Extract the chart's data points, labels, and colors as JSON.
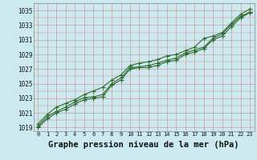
{
  "bg_color": "#cde9f0",
  "grid_color_major": "#b0c8d0",
  "grid_color_minor": "#c8dde5",
  "line_color": "#2d6a2d",
  "x_values": [
    0,
    1,
    2,
    3,
    4,
    5,
    6,
    7,
    8,
    9,
    10,
    11,
    12,
    13,
    14,
    15,
    16,
    17,
    18,
    19,
    20,
    21,
    22,
    23
  ],
  "y_values_main": [
    1019.2,
    1020.5,
    1021.2,
    1021.8,
    1022.5,
    1023.1,
    1023.2,
    1023.5,
    1025.0,
    1025.8,
    1027.2,
    1027.3,
    1027.5,
    1027.8,
    1028.2,
    1028.5,
    1029.2,
    1029.6,
    1030.0,
    1031.2,
    1031.8,
    1033.1,
    1034.2,
    1034.8
  ],
  "y_values_upper": [
    1019.5,
    1020.8,
    1021.8,
    1022.3,
    1022.8,
    1023.5,
    1024.0,
    1024.5,
    1025.5,
    1026.2,
    1027.5,
    1027.8,
    1028.0,
    1028.3,
    1028.8,
    1029.0,
    1029.5,
    1030.0,
    1031.2,
    1031.5,
    1032.0,
    1033.3,
    1034.5,
    1035.2
  ],
  "y_values_lower": [
    1019.0,
    1020.2,
    1021.0,
    1021.5,
    1022.2,
    1022.8,
    1023.0,
    1023.2,
    1024.8,
    1025.5,
    1027.0,
    1027.2,
    1027.2,
    1027.5,
    1028.0,
    1028.2,
    1029.0,
    1029.3,
    1029.8,
    1031.0,
    1031.5,
    1032.8,
    1034.0,
    1034.7
  ],
  "ylim": [
    1018.5,
    1036.0
  ],
  "yticks": [
    1019,
    1021,
    1023,
    1025,
    1027,
    1029,
    1031,
    1033,
    1035
  ],
  "xticks": [
    0,
    1,
    2,
    3,
    4,
    5,
    6,
    7,
    8,
    9,
    10,
    11,
    12,
    13,
    14,
    15,
    16,
    17,
    18,
    19,
    20,
    21,
    22,
    23
  ],
  "xlabel": "Graphe pression niveau de la mer (hPa)",
  "tick_fontsize": 5.5,
  "xlabel_fontsize": 7.5,
  "line_width": 0.8,
  "marker_size": 2.0
}
